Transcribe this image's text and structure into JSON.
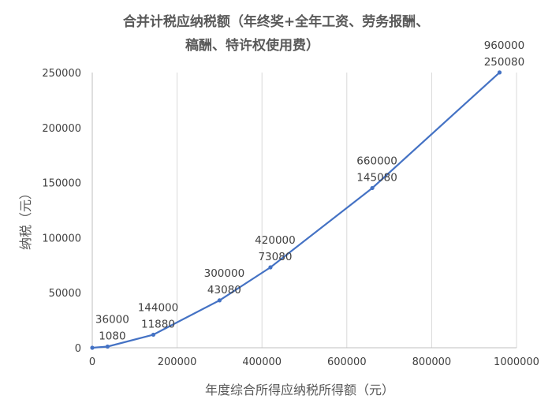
{
  "chart_data": {
    "type": "line",
    "title_lines": [
      "合并计税应纳税额（年终奖+全年工资、劳务报酬、",
      "稿酬、特许权使用费）"
    ],
    "xlabel": "年度综合所得应纳税所得额（元）",
    "ylabel": "纳税（元）",
    "xlim": [
      0,
      1000000
    ],
    "ylim": [
      0,
      250000
    ],
    "x_ticks": [
      0,
      200000,
      400000,
      600000,
      800000,
      1000000
    ],
    "y_ticks": [
      0,
      50000,
      100000,
      150000,
      200000,
      250000
    ],
    "grid": {
      "vertical": true,
      "horizontal": false
    },
    "line_color": "#4472c4",
    "series": [
      {
        "x": [
          0,
          36000,
          144000,
          300000,
          420000,
          660000,
          960000
        ],
        "y": [
          0,
          1080,
          11880,
          43080,
          73080,
          145080,
          250080
        ]
      }
    ],
    "annotations": [
      {
        "x": 36000,
        "y": 1080,
        "lines": [
          "36000",
          "1080"
        ]
      },
      {
        "x": 144000,
        "y": 11880,
        "lines": [
          "144000",
          "11880"
        ]
      },
      {
        "x": 300000,
        "y": 43080,
        "lines": [
          "300000",
          "43080"
        ]
      },
      {
        "x": 420000,
        "y": 73080,
        "lines": [
          "420000",
          "73080"
        ]
      },
      {
        "x": 660000,
        "y": 145080,
        "lines": [
          "660000",
          "145080"
        ]
      },
      {
        "x": 960000,
        "y": 250080,
        "lines": [
          "960000",
          "250080"
        ]
      }
    ]
  }
}
